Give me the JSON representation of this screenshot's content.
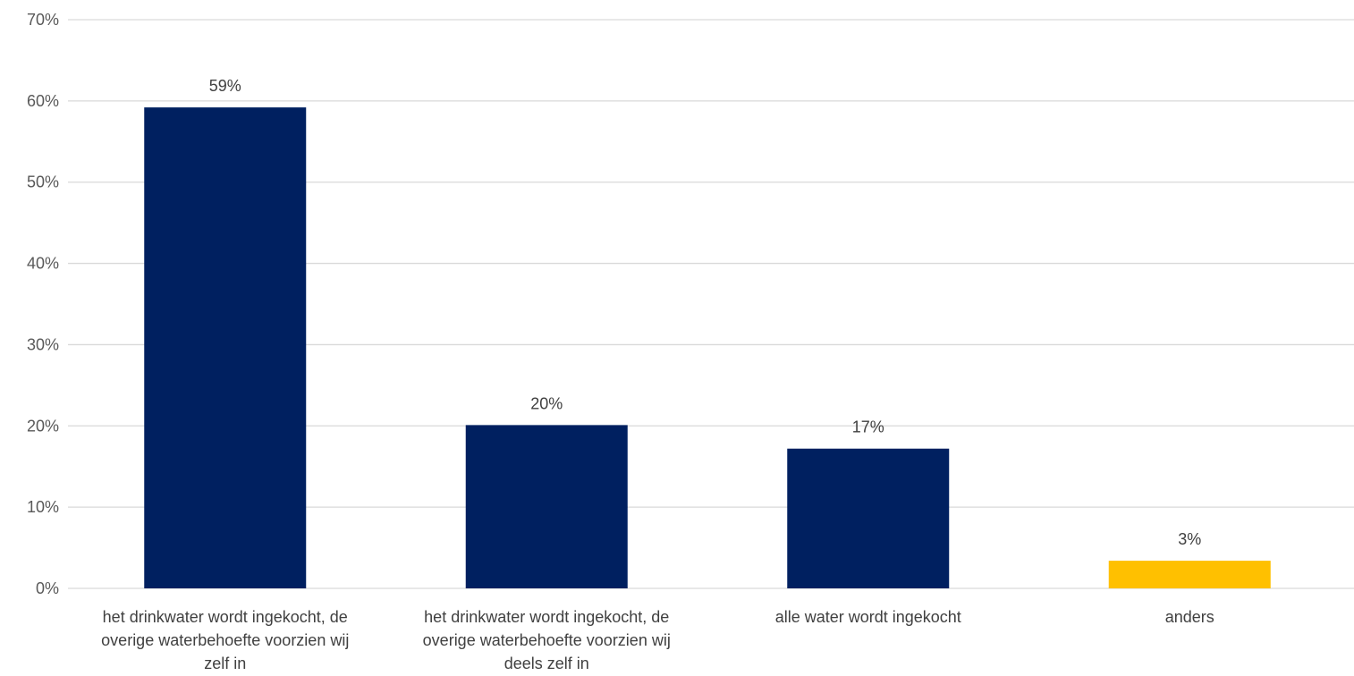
{
  "chart_data": {
    "type": "bar",
    "categories": [
      [
        "het drinkwater wordt ingekocht, de",
        "overige waterbehoefte voorzien wij",
        "zelf in"
      ],
      [
        "het drinkwater wordt ingekocht, de",
        "overige waterbehoefte voorzien wij",
        "deels zelf in"
      ],
      [
        "alle water wordt ingekocht"
      ],
      [
        "anders"
      ]
    ],
    "values": [
      59.2,
      20.1,
      17.2,
      3.4
    ],
    "data_labels": [
      "59%",
      "20%",
      "17%",
      "3%"
    ],
    "bar_colors": [
      "#002060",
      "#002060",
      "#002060",
      "#FFC000"
    ],
    "ylim": [
      0,
      70
    ],
    "y_ticks": [
      0,
      10,
      20,
      30,
      40,
      50,
      60,
      70
    ],
    "y_tick_labels": [
      "0%",
      "10%",
      "20%",
      "30%",
      "40%",
      "50%",
      "60%",
      "70%"
    ],
    "grid": true,
    "title": "",
    "xlabel": "",
    "ylabel": ""
  }
}
